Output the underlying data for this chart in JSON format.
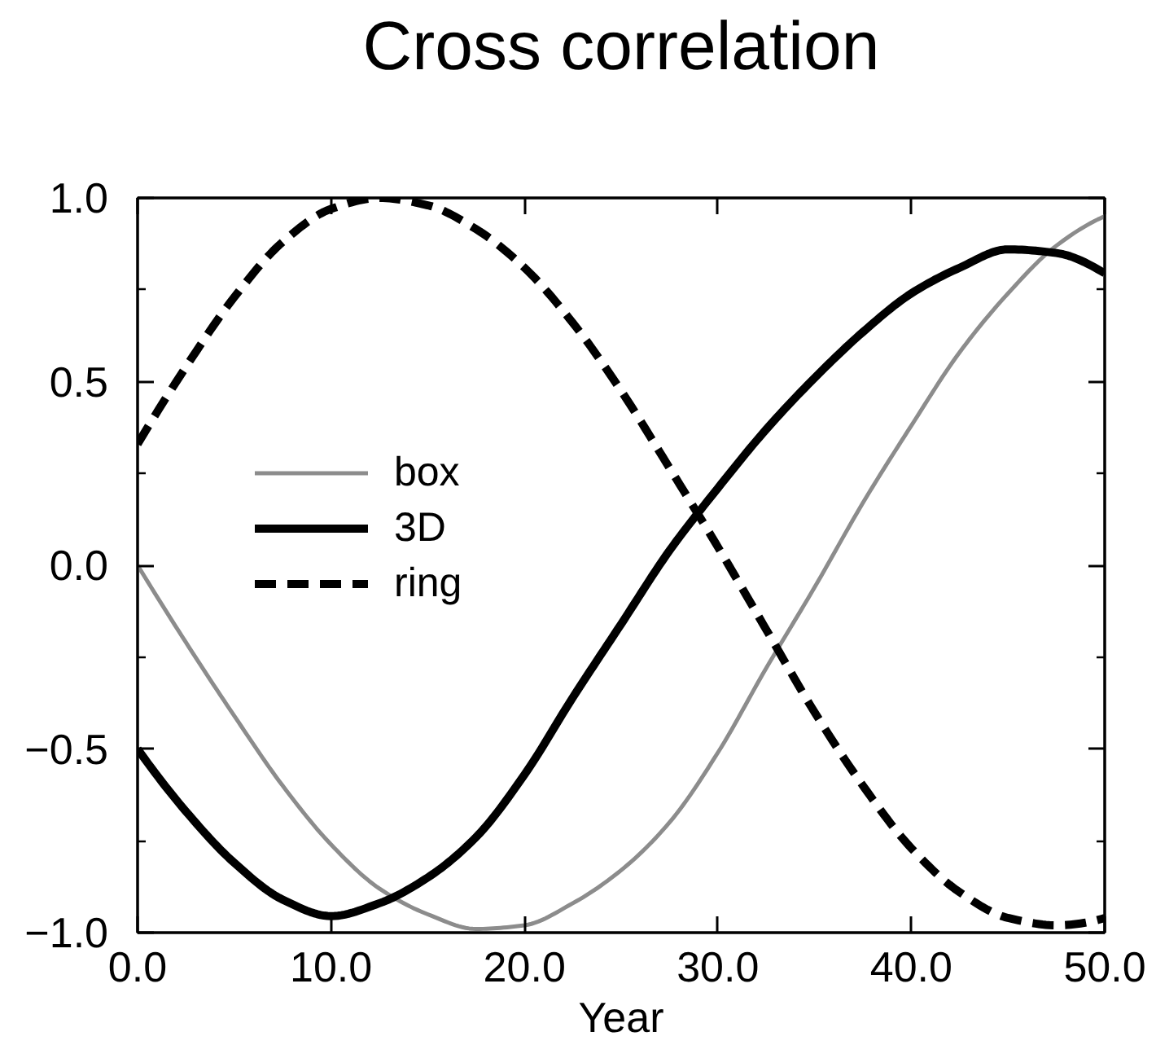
{
  "chart_data": {
    "type": "line",
    "title": "Cross correlation",
    "xlabel": "Year",
    "x": [
      0,
      2.5,
      5,
      7.5,
      10,
      12.5,
      15,
      17.5,
      20,
      22.5,
      25,
      27.5,
      30,
      32.5,
      35,
      37.5,
      40,
      42.5,
      45,
      47.5,
      50
    ],
    "series": [
      {
        "name": "box",
        "color": "#8c8c8c",
        "line_style": "solid",
        "values": [
          0.0,
          -0.21,
          -0.41,
          -0.6,
          -0.76,
          -0.88,
          -0.95,
          -0.99,
          -0.98,
          -0.92,
          -0.83,
          -0.7,
          -0.51,
          -0.28,
          -0.06,
          0.17,
          0.38,
          0.58,
          0.74,
          0.87,
          0.95
        ]
      },
      {
        "name": "3D",
        "color": "#000000",
        "line_style": "solid",
        "values": [
          -0.5,
          -0.67,
          -0.81,
          -0.91,
          -0.955,
          -0.92,
          -0.85,
          -0.74,
          -0.57,
          -0.36,
          -0.16,
          0.04,
          0.21,
          0.37,
          0.51,
          0.635,
          0.74,
          0.81,
          0.86,
          0.85,
          0.795
        ]
      },
      {
        "name": "ring",
        "color": "#000000",
        "line_style": "dashed",
        "values": [
          0.33,
          0.54,
          0.73,
          0.88,
          0.97,
          1.0,
          0.98,
          0.915,
          0.81,
          0.66,
          0.475,
          0.265,
          0.05,
          -0.175,
          -0.4,
          -0.6,
          -0.77,
          -0.89,
          -0.96,
          -0.98,
          -0.96
        ]
      }
    ],
    "xlim": [
      0,
      50
    ],
    "ylim": [
      -1,
      1
    ],
    "xticks": [
      {
        "value": 0,
        "label": "0.0"
      },
      {
        "value": 10,
        "label": "10.0"
      },
      {
        "value": 20,
        "label": "20.0"
      },
      {
        "value": 30,
        "label": "30.0"
      },
      {
        "value": 40,
        "label": "40.0"
      },
      {
        "value": 50,
        "label": "50.0"
      }
    ],
    "yticks": [
      {
        "value": -1,
        "label": "−1.0"
      },
      {
        "value": -0.75,
        "label": null
      },
      {
        "value": -0.5,
        "label": "−0.5"
      },
      {
        "value": -0.25,
        "label": null
      },
      {
        "value": 0,
        "label": "0.0"
      },
      {
        "value": 0.25,
        "label": null
      },
      {
        "value": 0.5,
        "label": "0.5"
      },
      {
        "value": 0.75,
        "label": null
      },
      {
        "value": 1,
        "label": "1.0"
      }
    ],
    "legend": "left"
  }
}
